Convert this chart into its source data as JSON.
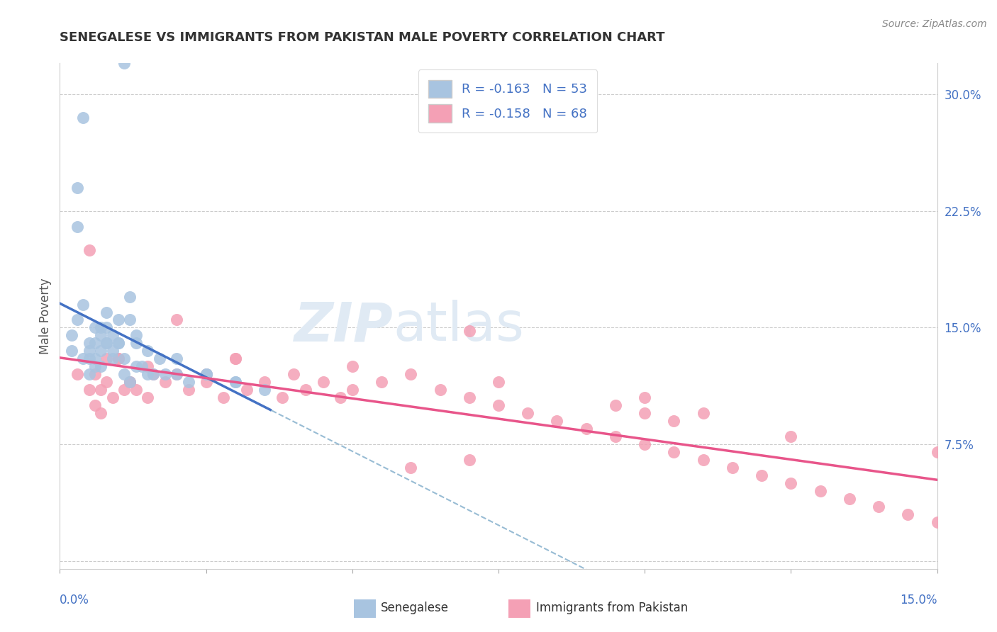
{
  "title": "SENEGALESE VS IMMIGRANTS FROM PAKISTAN MALE POVERTY CORRELATION CHART",
  "source": "Source: ZipAtlas.com",
  "ylabel": "Male Poverty",
  "xlim": [
    0.0,
    15.0
  ],
  "ylim": [
    -0.5,
    32.0
  ],
  "color_blue": "#a8c4e0",
  "color_pink": "#f4a0b5",
  "line_blue": "#4472c4",
  "line_pink": "#e8558a",
  "line_dashed_color": "#98bcd4",
  "background": "#ffffff",
  "ytick_vals": [
    0.0,
    7.5,
    15.0,
    22.5,
    30.0
  ],
  "ytick_labels": [
    "",
    "7.5%",
    "15.0%",
    "22.5%",
    "30.0%"
  ],
  "xtick_left_label": "0.0%",
  "xtick_right_label": "15.0%",
  "senegalese_x": [
    0.2,
    0.3,
    0.3,
    0.4,
    0.4,
    0.5,
    0.5,
    0.5,
    0.6,
    0.6,
    0.6,
    0.7,
    0.7,
    0.7,
    0.8,
    0.8,
    0.8,
    0.9,
    0.9,
    1.0,
    1.0,
    1.1,
    1.1,
    1.2,
    1.2,
    1.3,
    1.3,
    1.5,
    1.7,
    2.0,
    2.2,
    2.5,
    3.0,
    3.5,
    0.2,
    0.3,
    0.4,
    0.5,
    0.6,
    0.7,
    0.8,
    0.9,
    1.0,
    1.1,
    1.2,
    1.3,
    1.4,
    1.5,
    1.6,
    1.8,
    2.0,
    2.5,
    3.0
  ],
  "senegalese_y": [
    13.5,
    24.0,
    21.5,
    28.5,
    16.5,
    14.0,
    13.0,
    12.0,
    15.0,
    14.0,
    13.0,
    15.0,
    14.5,
    13.5,
    16.0,
    15.0,
    14.0,
    14.5,
    13.5,
    14.0,
    15.5,
    32.0,
    13.0,
    17.0,
    15.5,
    14.0,
    14.5,
    13.5,
    13.0,
    13.0,
    11.5,
    12.0,
    11.5,
    11.0,
    14.5,
    15.5,
    13.0,
    13.5,
    12.5,
    12.5,
    14.0,
    13.0,
    14.0,
    12.0,
    11.5,
    12.5,
    12.5,
    12.0,
    12.0,
    12.0,
    12.0,
    12.0,
    11.5
  ],
  "pakistan_x": [
    0.3,
    0.5,
    0.6,
    0.7,
    0.8,
    0.9,
    1.0,
    1.1,
    1.2,
    1.3,
    1.5,
    1.6,
    1.8,
    2.0,
    2.2,
    2.5,
    2.8,
    3.0,
    3.2,
    3.5,
    3.8,
    4.0,
    4.2,
    4.5,
    4.8,
    5.0,
    5.5,
    6.0,
    6.5,
    7.0,
    7.5,
    8.0,
    8.5,
    9.0,
    9.5,
    10.0,
    10.5,
    11.0,
    11.5,
    12.0,
    12.5,
    13.0,
    13.5,
    14.0,
    14.5,
    15.0,
    0.5,
    0.6,
    0.7,
    0.8,
    1.0,
    1.2,
    1.5,
    2.0,
    2.5,
    3.0,
    5.0,
    7.5,
    7.0,
    10.0,
    12.5,
    15.0,
    9.5,
    10.0,
    10.5,
    11.0,
    6.0,
    7.0
  ],
  "pakistan_y": [
    12.0,
    20.0,
    12.0,
    11.0,
    11.5,
    10.5,
    13.0,
    11.0,
    11.5,
    11.0,
    12.5,
    12.0,
    11.5,
    12.0,
    11.0,
    12.0,
    10.5,
    13.0,
    11.0,
    11.5,
    10.5,
    12.0,
    11.0,
    11.5,
    10.5,
    11.0,
    11.5,
    12.0,
    11.0,
    10.5,
    10.0,
    9.5,
    9.0,
    8.5,
    8.0,
    7.5,
    7.0,
    6.5,
    6.0,
    5.5,
    5.0,
    4.5,
    4.0,
    3.5,
    3.0,
    2.5,
    11.0,
    10.0,
    9.5,
    13.0,
    13.0,
    11.5,
    10.5,
    15.5,
    11.5,
    13.0,
    12.5,
    11.5,
    14.8,
    10.5,
    8.0,
    7.0,
    10.0,
    9.5,
    9.0,
    9.5,
    6.0,
    6.5
  ]
}
